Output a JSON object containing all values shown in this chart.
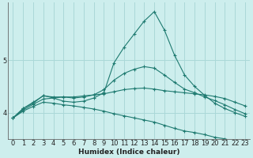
{
  "xlabel": "Humidex (Indice chaleur)",
  "ylabel": "",
  "bg_color": "#cdeeed",
  "grid_color": "#aad8d8",
  "line_color": "#1e7a70",
  "x": [
    0,
    1,
    2,
    3,
    4,
    5,
    6,
    7,
    8,
    9,
    10,
    11,
    12,
    13,
    14,
    15,
    16,
    17,
    18,
    19,
    20,
    21,
    22,
    23
  ],
  "lines": [
    [
      3.9,
      4.08,
      4.18,
      4.33,
      4.28,
      4.22,
      4.2,
      4.22,
      4.28,
      4.38,
      4.95,
      5.25,
      5.5,
      5.75,
      5.93,
      5.58,
      5.1,
      4.72,
      4.5,
      4.33,
      4.18,
      4.08,
      4.0,
      3.93
    ],
    [
      3.9,
      4.08,
      4.2,
      4.32,
      4.3,
      4.3,
      4.28,
      4.3,
      4.34,
      4.44,
      4.62,
      4.75,
      4.83,
      4.88,
      4.85,
      4.72,
      4.58,
      4.45,
      4.38,
      4.3,
      4.23,
      4.15,
      4.06,
      3.98
    ],
    [
      3.9,
      4.05,
      4.16,
      4.26,
      4.28,
      4.3,
      4.3,
      4.32,
      4.34,
      4.36,
      4.4,
      4.44,
      4.46,
      4.47,
      4.45,
      4.42,
      4.4,
      4.38,
      4.36,
      4.34,
      4.31,
      4.27,
      4.2,
      4.13
    ],
    [
      3.9,
      4.03,
      4.12,
      4.2,
      4.18,
      4.15,
      4.13,
      4.1,
      4.07,
      4.03,
      3.98,
      3.94,
      3.9,
      3.86,
      3.82,
      3.76,
      3.7,
      3.65,
      3.62,
      3.58,
      3.53,
      3.5,
      3.45,
      3.4
    ]
  ],
  "ylim": [
    3.5,
    6.1
  ],
  "yticks": [
    4,
    5
  ],
  "xlim": [
    -0.5,
    23.5
  ],
  "xticks": [
    0,
    1,
    2,
    3,
    4,
    5,
    6,
    7,
    8,
    9,
    10,
    11,
    12,
    13,
    14,
    15,
    16,
    17,
    18,
    19,
    20,
    21,
    22,
    23
  ],
  "tick_fontsize": 6.0,
  "xlabel_fontsize": 6.5
}
